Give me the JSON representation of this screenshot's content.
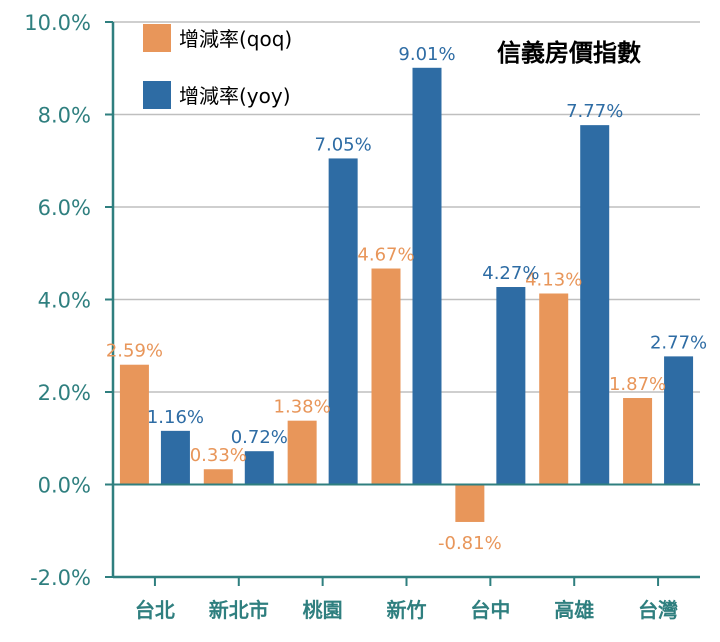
{
  "colors": {
    "qoq": "#E8965A",
    "yoy": "#2E6CA4",
    "axis": "#2F7F7F",
    "grid": "#BFBFBF",
    "qoq_label": "#E8965A",
    "yoy_label": "#2E6CA4"
  },
  "chart_data": {
    "type": "bar",
    "title": "信義房價指數",
    "categories": [
      "台北",
      "新北市",
      "桃園",
      "新竹",
      "台中",
      "高雄",
      "台灣"
    ],
    "series": [
      {
        "name": "增減率(qoq)",
        "values": [
          2.59,
          0.33,
          1.38,
          4.67,
          -0.81,
          4.13,
          1.87
        ],
        "labels": [
          "2.59%",
          "0.33%",
          "1.38%",
          "4.67%",
          "-0.81%",
          "4.13%",
          "1.87%"
        ]
      },
      {
        "name": "增減率(yoy)",
        "values": [
          1.16,
          0.72,
          7.05,
          9.01,
          4.27,
          7.77,
          2.77
        ],
        "labels": [
          "1.16%",
          "0.72%",
          "7.05%",
          "9.01%",
          "4.27%",
          "7.77%",
          "2.77%"
        ]
      }
    ],
    "ylim": [
      -2.0,
      10.0
    ],
    "yticks": [
      -2.0,
      0.0,
      2.0,
      4.0,
      6.0,
      8.0,
      10.0
    ],
    "ytick_labels": [
      "-2.0%",
      "0.0%",
      "2.0%",
      "4.0%",
      "6.0%",
      "8.0%",
      "10.0%"
    ],
    "xlabel": "",
    "ylabel": "",
    "grid": true,
    "legend_position": "top-left"
  }
}
